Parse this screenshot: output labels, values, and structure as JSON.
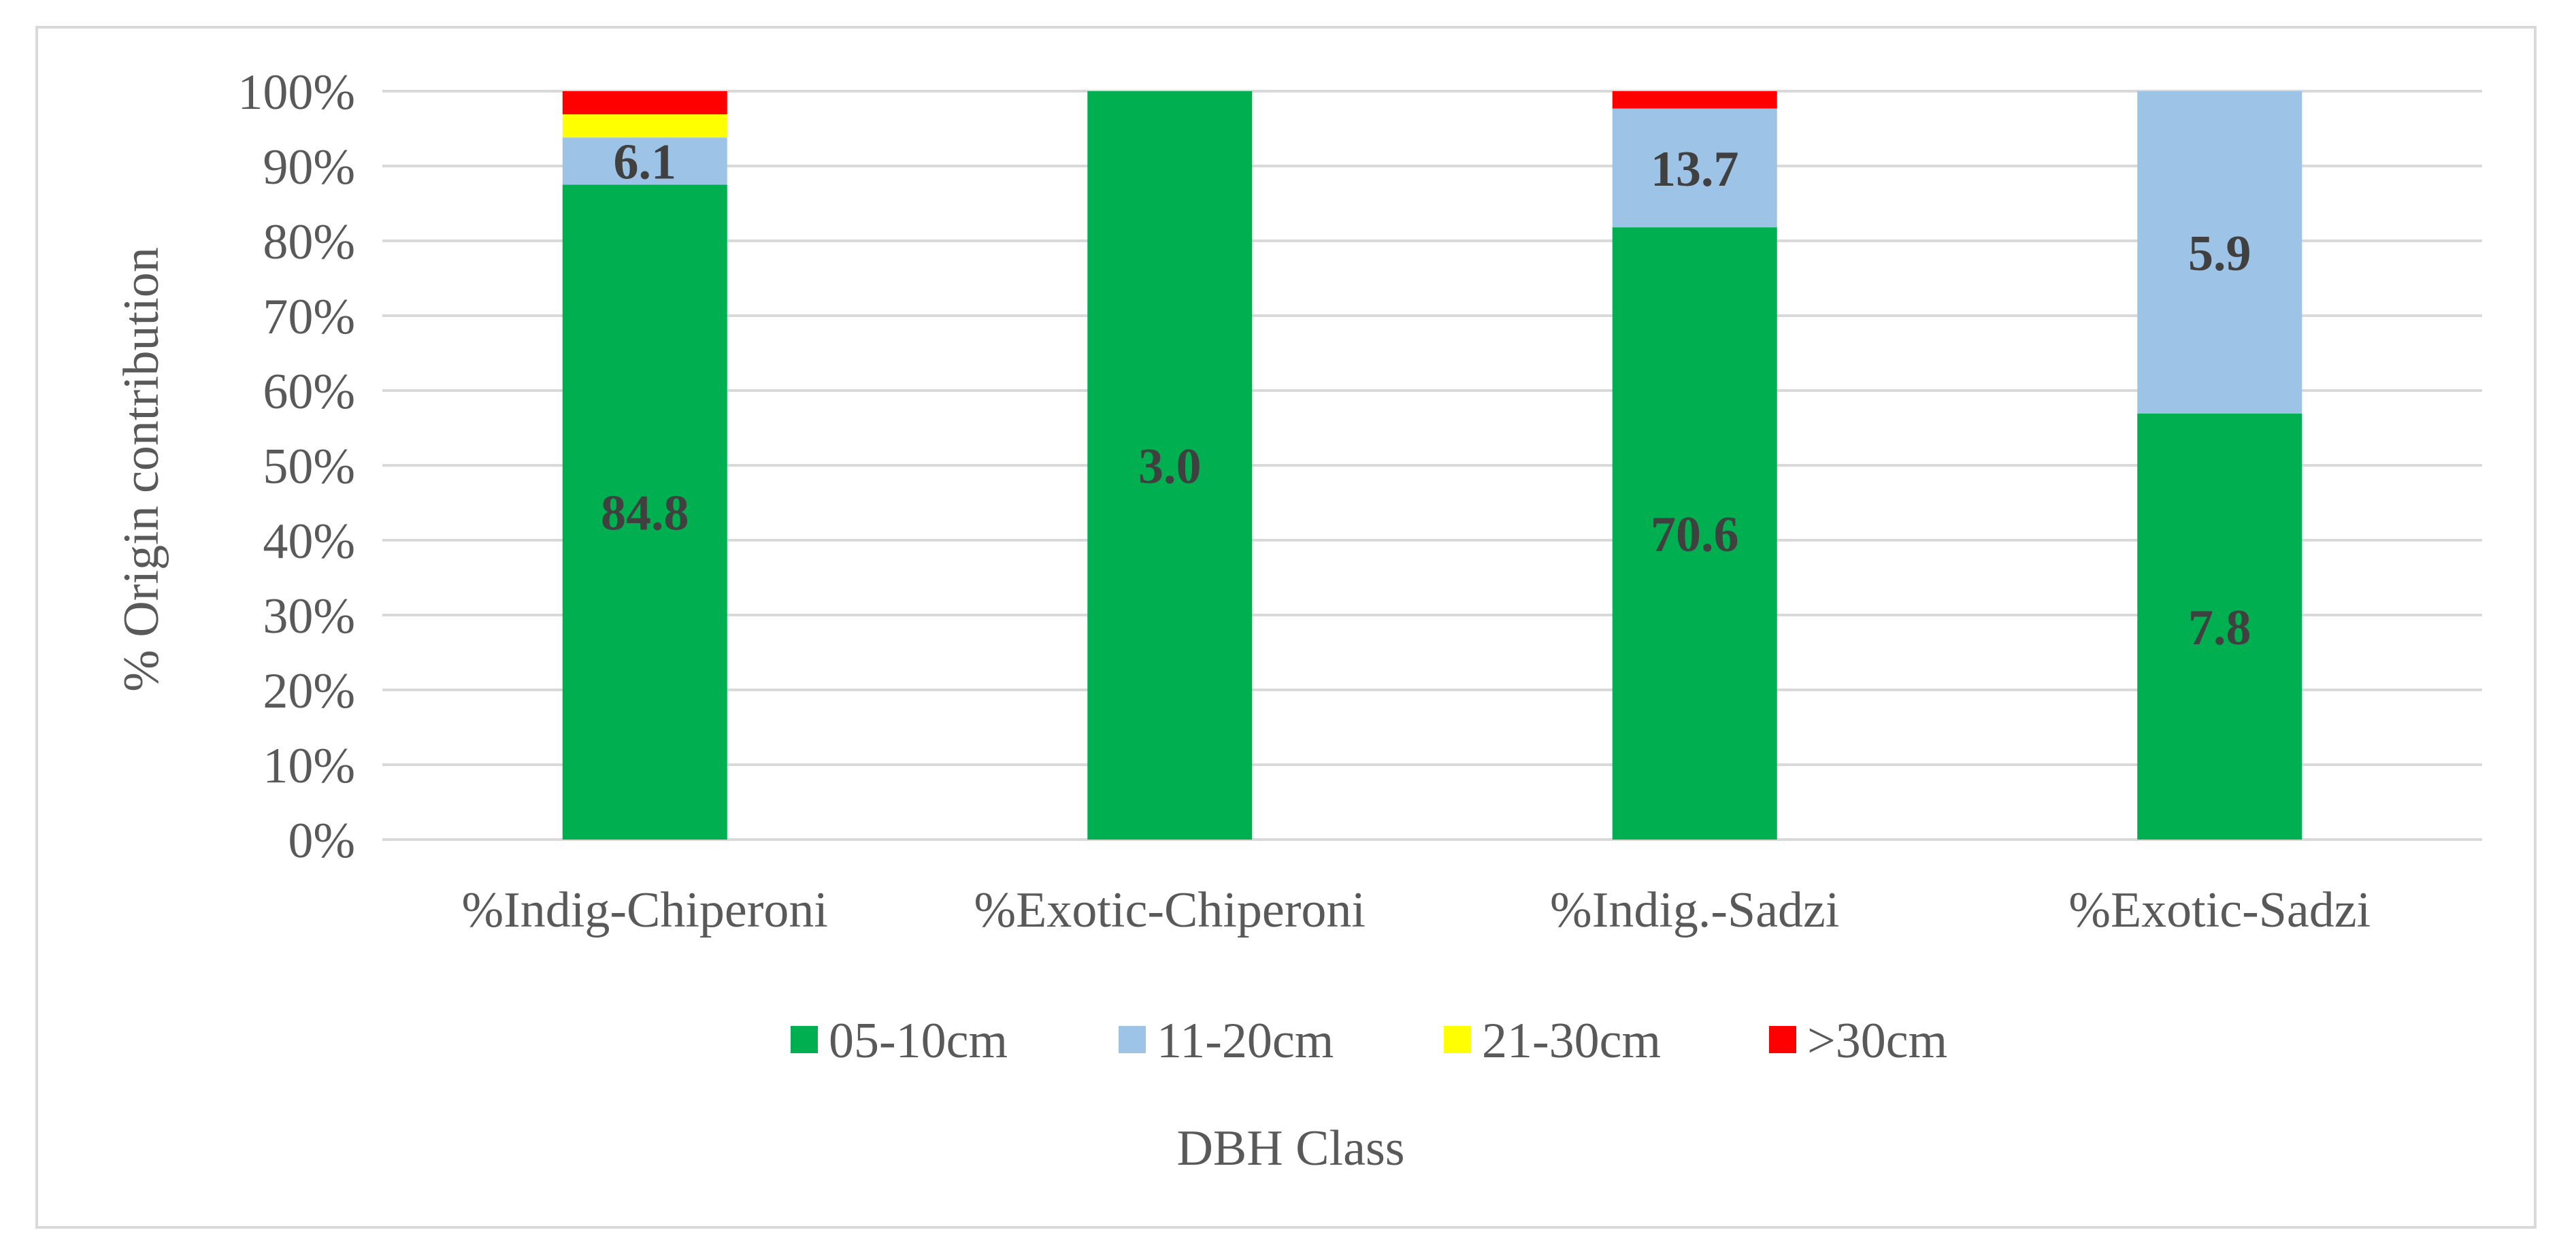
{
  "chart_data": {
    "type": "bar",
    "stacked": true,
    "percent_stacked": true,
    "title": "",
    "xlabel": "DBH Class",
    "ylabel": "% Origin contribution",
    "ylim": [
      0,
      100
    ],
    "y_ticks": [
      "0%",
      "10%",
      "20%",
      "30%",
      "40%",
      "50%",
      "60%",
      "70%",
      "80%",
      "90%",
      "100%"
    ],
    "grid": true,
    "legend_position": "bottom",
    "categories": [
      "%Indig-Chiperoni",
      "%Exotic-Chiperoni",
      "%Indig.-Sadzi",
      "%Exotic-Sadzi"
    ],
    "series": [
      {
        "name": "05-10cm",
        "color": "#00b050",
        "values": [
          84.8,
          3.0,
          70.6,
          7.8
        ],
        "labels": [
          "84.8",
          "3.0",
          "70.6",
          "7.8"
        ]
      },
      {
        "name": "11-20cm",
        "color": "#9dc3e6",
        "values": [
          6.1,
          0,
          13.7,
          5.9
        ],
        "labels": [
          "6.1",
          "",
          "13.7",
          "5.9"
        ]
      },
      {
        "name": "21-30cm",
        "color": "#ffff00",
        "values": [
          3.0,
          0,
          0,
          0
        ],
        "labels": [
          "",
          "",
          "",
          ""
        ]
      },
      {
        "name": ">30cm",
        "color": "#ff0000",
        "values": [
          3.0,
          0,
          2.0,
          0
        ],
        "labels": [
          "",
          "",
          "",
          ""
        ]
      }
    ]
  }
}
